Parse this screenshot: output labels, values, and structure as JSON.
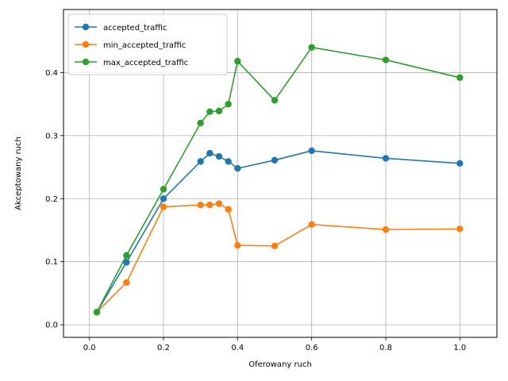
{
  "chart_data": {
    "type": "line",
    "title": "",
    "xlabel": "Oferowany ruch",
    "ylabel": "Akceptowany ruch",
    "xlim": [
      -0.07,
      1.1
    ],
    "ylim": [
      -0.02,
      0.5
    ],
    "xticks": [
      0.0,
      0.2,
      0.4,
      0.6,
      0.8,
      1.0
    ],
    "xtick_labels": [
      "0.0",
      "0.2",
      "0.4",
      "0.6",
      "0.8",
      "1.0"
    ],
    "yticks": [
      0.0,
      0.1,
      0.2,
      0.3,
      0.4
    ],
    "ytick_labels": [
      "0.0",
      "0.1",
      "0.2",
      "0.3",
      "0.4"
    ],
    "grid": true,
    "legend_position": "upper-left",
    "x": [
      0.02,
      0.1,
      0.2,
      0.3,
      0.325,
      0.35,
      0.375,
      0.4,
      0.5,
      0.6,
      0.8,
      1.0
    ],
    "series": [
      {
        "name": "accepted_traffic",
        "color": "#1f77b4",
        "values": [
          0.02,
          0.099,
          0.2,
          0.259,
          0.272,
          0.267,
          0.259,
          0.248,
          0.261,
          0.276,
          0.264,
          0.256
        ]
      },
      {
        "name": "min_accepted_traffic",
        "color": "#ff7f0e",
        "values": [
          0.02,
          0.067,
          0.187,
          0.19,
          0.19,
          0.192,
          0.183,
          0.126,
          0.125,
          0.159,
          0.151,
          0.152
        ]
      },
      {
        "name": "max_accepted_traffic",
        "color": "#2ca02c",
        "values": [
          0.02,
          0.11,
          0.215,
          0.32,
          0.338,
          0.339,
          0.35,
          0.418,
          0.356,
          0.44,
          0.42,
          0.392
        ]
      }
    ]
  }
}
